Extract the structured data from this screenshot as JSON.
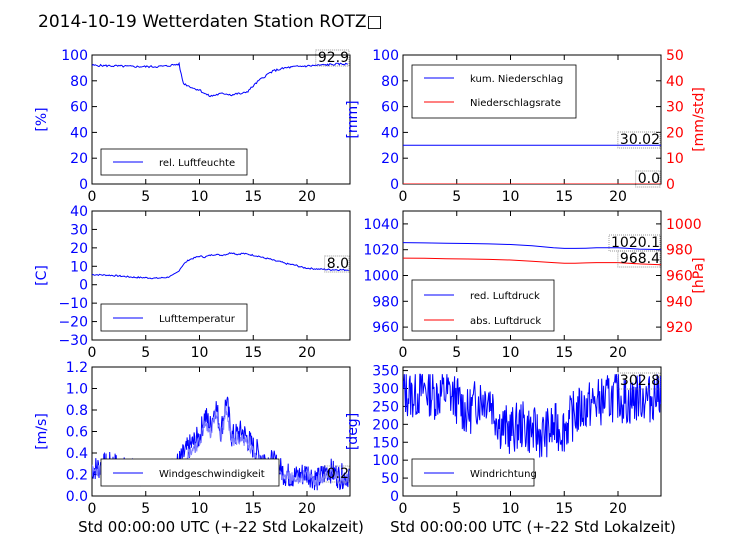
{
  "title": "2014-10-19 Wetterdaten Station ROTZ□",
  "colors": {
    "blue": "#0000ff",
    "red": "#ff0000",
    "black": "#000000",
    "lightblue": "#7f7fff"
  },
  "chart_data": [
    {
      "type": "line",
      "ylabel": "[%]",
      "xlim": [
        0,
        24
      ],
      "ylim": [
        0,
        100
      ],
      "xticks": [
        "0",
        "5",
        "10",
        "15",
        "20"
      ],
      "yticks": [
        "0",
        "20",
        "40",
        "60",
        "80",
        "100"
      ],
      "last_value_label": "92.9",
      "legend": "rel. Luftfeuchte",
      "series": [
        {
          "name": "rel. Luftfeuchte",
          "x": [
            0,
            2,
            4,
            6,
            7,
            7.7,
            8.1,
            8.3,
            8.5,
            9,
            9.5,
            10,
            10.5,
            11,
            11.5,
            12,
            12.5,
            13,
            13.5,
            14,
            14.5,
            15,
            15.5,
            16,
            16.5,
            17,
            17.5,
            18,
            19,
            20,
            21,
            22,
            23,
            23.9
          ],
          "y": [
            92,
            91.5,
            91,
            91,
            91.5,
            92.5,
            92.9,
            85,
            78,
            76,
            74,
            73,
            70,
            68,
            69,
            70,
            70,
            69,
            70,
            70,
            72,
            76,
            80,
            83,
            86,
            88,
            89,
            90,
            91,
            91.5,
            92,
            92.5,
            93,
            92.9
          ]
        }
      ]
    },
    {
      "type": "line",
      "ylabel": "[mm]",
      "y2label": "[mm/std]",
      "xlim": [
        0,
        24
      ],
      "ylim": [
        0,
        100
      ],
      "y2lim": [
        0,
        50
      ],
      "xticks": [
        "0",
        "5",
        "10",
        "15",
        "20"
      ],
      "yticks": [
        "0",
        "20",
        "40",
        "60",
        "80",
        "100"
      ],
      "y2ticks": [
        "0",
        "10",
        "20",
        "30",
        "40",
        "50"
      ],
      "last_value_labels": [
        "30.02",
        "0.0"
      ],
      "legend": [
        "kum. Niederschlag",
        "Niederschlagsrate"
      ],
      "series": [
        {
          "name": "kum. Niederschlag",
          "axis": "left",
          "x": [
            0,
            24
          ],
          "y": [
            30.02,
            30.02
          ]
        },
        {
          "name": "Niederschlagsrate",
          "axis": "right",
          "x": [
            0,
            24
          ],
          "y": [
            0.0,
            0.0
          ]
        }
      ]
    },
    {
      "type": "line",
      "ylabel": "[C]",
      "xlim": [
        0,
        24
      ],
      "ylim": [
        -30,
        40
      ],
      "xticks": [
        "0",
        "5",
        "10",
        "15",
        "20"
      ],
      "yticks": [
        "−30",
        "−20",
        "−10",
        "0",
        "10",
        "20",
        "30",
        "40"
      ],
      "last_value_label": "8.0",
      "legend": "Lufttemperatur",
      "series": [
        {
          "name": "Lufttemperatur",
          "x": [
            0,
            1,
            2,
            3,
            4,
            5,
            6,
            7,
            7.5,
            8,
            8.5,
            9,
            9.5,
            10,
            10.5,
            11,
            11.5,
            12,
            12.5,
            13,
            13.5,
            14,
            14.5,
            15,
            15.5,
            16,
            16.5,
            17,
            17.5,
            18,
            18.5,
            19,
            19.5,
            20,
            21,
            22,
            23,
            24
          ],
          "y": [
            5.5,
            5.3,
            5,
            4.5,
            4,
            3.8,
            3.5,
            4,
            5,
            7,
            11,
            13.5,
            14.5,
            15.5,
            15,
            16,
            16.5,
            16,
            16.5,
            17.5,
            16.5,
            17,
            16.5,
            16,
            15.5,
            14.5,
            14,
            13,
            12.5,
            11.5,
            11,
            10.5,
            9.5,
            9,
            8.5,
            8.2,
            8.1,
            8.0
          ]
        }
      ]
    },
    {
      "type": "line",
      "y2label": "[hPa]",
      "xlim": [
        0,
        24
      ],
      "ylim": [
        950,
        1050
      ],
      "y2lim": [
        910,
        1010
      ],
      "xticks": [
        "0",
        "5",
        "10",
        "15",
        "20"
      ],
      "yticks": [
        "960",
        "980",
        "1000",
        "1020",
        "1040"
      ],
      "y2ticks": [
        "920",
        "940",
        "960",
        "980",
        "1000"
      ],
      "last_value_labels": [
        "1020.1",
        "968.4"
      ],
      "legend": [
        "red. Luftdruck",
        "abs. Luftdruck"
      ],
      "series": [
        {
          "name": "red. Luftdruck",
          "axis": "left",
          "x": [
            0,
            2,
            4,
            6,
            8,
            10,
            12,
            14,
            15,
            16,
            17,
            18,
            20,
            22,
            24
          ],
          "y": [
            1025.5,
            1025.3,
            1025,
            1024.8,
            1024.5,
            1024,
            1023,
            1021.5,
            1021,
            1021,
            1021.2,
            1021.5,
            1021.5,
            1020.5,
            1020.1
          ]
        },
        {
          "name": "abs. Luftdruck",
          "axis": "right",
          "x": [
            0,
            2,
            4,
            6,
            8,
            10,
            12,
            14,
            15,
            16,
            17,
            18,
            20,
            22,
            24
          ],
          "y": [
            973.5,
            973.3,
            973,
            972.8,
            972.5,
            972,
            971,
            970,
            969.5,
            969.5,
            969.8,
            970,
            970,
            969,
            968.4
          ]
        }
      ]
    },
    {
      "type": "line",
      "ylabel": "[m/s]",
      "xlabel": "Std 00:00:00 UTC (+-22 Std Lokalzeit)",
      "xlim": [
        0,
        24
      ],
      "ylim": [
        0,
        1.2
      ],
      "xticks": [
        "0",
        "5",
        "10",
        "15",
        "20"
      ],
      "yticks": [
        "0.0",
        "0.2",
        "0.4",
        "0.6",
        "0.8",
        "1.0",
        "1.2"
      ],
      "last_value_label": "0.2",
      "legend": "Windgeschwindigkeit",
      "series": [
        {
          "name": "Windgeschwindigkeit",
          "x": [
            0,
            1,
            2,
            3,
            4,
            5,
            6,
            7,
            8,
            9,
            10,
            10.5,
            11,
            11.5,
            12,
            12.5,
            13,
            14,
            15,
            16,
            17,
            18,
            19,
            20,
            21,
            22,
            23,
            24
          ],
          "y": [
            0.25,
            0.28,
            0.3,
            0.25,
            0.22,
            0.2,
            0.25,
            0.22,
            0.3,
            0.45,
            0.55,
            0.75,
            0.65,
            0.85,
            0.6,
            0.9,
            0.55,
            0.6,
            0.45,
            0.35,
            0.3,
            0.2,
            0.18,
            0.22,
            0.15,
            0.25,
            0.18,
            0.2
          ]
        }
      ]
    },
    {
      "type": "line",
      "ylabel": "[deg]",
      "xlabel": "Std 00:00:00 UTC (+-22 Std Lokalzeit)",
      "xlim": [
        0,
        24
      ],
      "ylim": [
        0,
        360
      ],
      "xticks": [
        "0",
        "5",
        "10",
        "15",
        "20"
      ],
      "yticks": [
        "0",
        "50",
        "100",
        "150",
        "200",
        "250",
        "300",
        "350"
      ],
      "last_value_label": "302.8",
      "legend": "Windrichtung",
      "series": [
        {
          "name": "Windrichtung",
          "x": [
            0,
            1,
            2,
            3,
            4,
            5,
            6,
            7,
            8,
            9,
            10,
            11,
            12,
            13,
            14,
            15,
            16,
            17,
            18,
            19,
            20,
            21,
            22,
            23,
            24
          ],
          "y": [
            290,
            280,
            300,
            280,
            290,
            270,
            230,
            270,
            280,
            200,
            180,
            200,
            180,
            170,
            190,
            190,
            230,
            250,
            260,
            270,
            280,
            260,
            280,
            270,
            302.8
          ]
        }
      ]
    }
  ]
}
